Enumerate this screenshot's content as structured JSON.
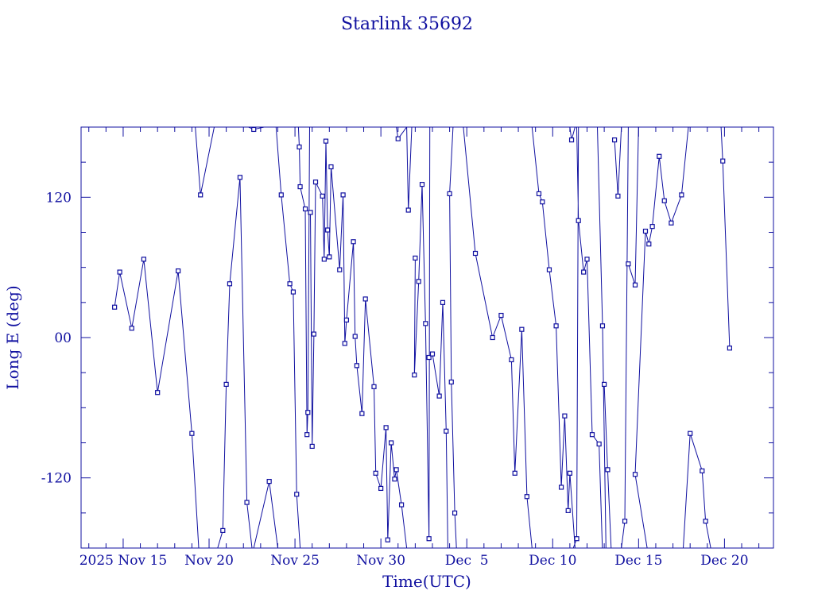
{
  "chart_data": {
    "type": "line",
    "title": "Starlink 35692",
    "xlabel": "Time(UTC)",
    "ylabel": "Long E (deg)",
    "x_unit": "days",
    "xlim": [
      -2.45,
      37.85
    ],
    "ylim": [
      -180,
      180
    ],
    "x_ticks": [
      {
        "v": 0,
        "label": "2025 Nov 15"
      },
      {
        "v": 5,
        "label": "Nov 20"
      },
      {
        "v": 10,
        "label": "Nov 25"
      },
      {
        "v": 15,
        "label": "Nov 30"
      },
      {
        "v": 20,
        "label": "Dec  5"
      },
      {
        "v": 25,
        "label": "Dec 10"
      },
      {
        "v": 30,
        "label": "Dec 15"
      },
      {
        "v": 35,
        "label": "Dec 20"
      }
    ],
    "y_ticks": [
      {
        "v": 120,
        "label": "120"
      },
      {
        "v": 0,
        "label": "00"
      },
      {
        "v": -120,
        "label": "-120"
      }
    ],
    "color": "#1010a0",
    "grid": false,
    "series": [
      {
        "values": [
          [
            -0.5,
            26
          ],
          [
            -0.2,
            56
          ],
          [
            0.5,
            8
          ],
          [
            1.2,
            67
          ],
          [
            2.0,
            -47
          ],
          [
            3.2,
            57
          ],
          [
            4.0,
            -82
          ],
          [
            4.4,
            -180
          ],
          [
            null,
            null
          ],
          [
            4.2,
            180
          ],
          [
            4.5,
            122
          ],
          [
            5.3,
            180
          ],
          [
            null,
            null
          ],
          [
            5.5,
            -180
          ],
          [
            5.8,
            -165
          ],
          [
            6.0,
            -40
          ],
          [
            6.2,
            46
          ],
          [
            6.8,
            137
          ],
          [
            7.2,
            -141
          ],
          [
            7.5,
            -180
          ],
          [
            null,
            null
          ],
          [
            7.3,
            180
          ],
          [
            7.6,
            178
          ],
          [
            8.2,
            180
          ],
          [
            null,
            null
          ],
          [
            7.6,
            -180
          ],
          [
            8.5,
            -123
          ],
          [
            9.0,
            -180
          ],
          [
            null,
            null
          ],
          [
            8.9,
            180
          ],
          [
            9.2,
            122
          ],
          [
            9.7,
            46
          ],
          [
            9.9,
            39
          ],
          [
            10.1,
            -134
          ],
          [
            10.3,
            -180
          ],
          [
            null,
            null
          ],
          [
            10.2,
            180
          ],
          [
            10.25,
            163
          ],
          [
            10.3,
            129
          ],
          [
            10.6,
            110
          ],
          [
            10.7,
            -83
          ],
          [
            10.75,
            -64
          ],
          [
            10.85,
            180
          ],
          [
            null,
            null
          ],
          [
            10.9,
            107
          ],
          [
            11.0,
            -93
          ],
          [
            11.1,
            3
          ],
          [
            11.2,
            133
          ],
          [
            11.6,
            121
          ],
          [
            11.7,
            67
          ],
          [
            11.8,
            168
          ],
          [
            11.9,
            92
          ],
          [
            12.0,
            69
          ],
          [
            12.1,
            146
          ],
          [
            12.6,
            58
          ],
          [
            12.8,
            122
          ],
          [
            12.9,
            -5
          ],
          [
            13.0,
            15
          ],
          [
            13.4,
            82
          ],
          [
            13.5,
            1
          ],
          [
            13.6,
            -24
          ],
          [
            13.9,
            -65
          ],
          [
            14.1,
            33
          ],
          [
            14.6,
            -42
          ],
          [
            14.7,
            -116
          ],
          [
            15.0,
            -129
          ],
          [
            15.3,
            -77
          ],
          [
            15.4,
            -173
          ],
          [
            15.6,
            -90
          ],
          [
            15.8,
            -121
          ],
          [
            15.9,
            -113
          ],
          [
            16.2,
            -143
          ],
          [
            16.5,
            -180
          ],
          [
            null,
            null
          ],
          [
            15.9,
            180
          ],
          [
            16.0,
            170
          ],
          [
            16.5,
            180
          ],
          [
            null,
            null
          ],
          [
            16.5,
            180
          ],
          [
            16.6,
            109
          ],
          [
            16.8,
            180
          ],
          [
            null,
            null
          ],
          [
            17.0,
            68
          ],
          [
            16.95,
            -32
          ],
          [
            17.2,
            48
          ],
          [
            17.4,
            131
          ],
          [
            17.6,
            12
          ],
          [
            17.8,
            -172
          ],
          [
            17.85,
            180
          ],
          [
            null,
            null
          ],
          [
            17.8,
            -17
          ],
          [
            18.0,
            -14
          ],
          [
            18.4,
            -50
          ],
          [
            18.6,
            30
          ],
          [
            18.8,
            -80
          ],
          [
            18.9,
            -180
          ],
          [
            null,
            null
          ],
          [
            19.2,
            180
          ],
          [
            19.0,
            123
          ],
          [
            19.1,
            -38
          ],
          [
            19.3,
            -150
          ],
          [
            19.4,
            -180
          ],
          [
            null,
            null
          ],
          [
            19.8,
            180
          ],
          [
            20.5,
            72
          ],
          [
            21.5,
            0
          ],
          [
            22.0,
            19
          ],
          [
            22.6,
            -19
          ],
          [
            22.8,
            -116
          ],
          [
            23.2,
            7
          ],
          [
            23.5,
            -136
          ],
          [
            23.8,
            -180
          ],
          [
            null,
            null
          ],
          [
            23.8,
            180
          ],
          [
            24.2,
            123
          ],
          [
            24.4,
            116
          ],
          [
            24.8,
            58
          ],
          [
            25.2,
            10
          ],
          [
            25.5,
            -128
          ],
          [
            25.7,
            -67
          ],
          [
            25.9,
            -148
          ],
          [
            26.0,
            -116
          ],
          [
            26.3,
            -180
          ],
          [
            null,
            null
          ],
          [
            26.0,
            180
          ],
          [
            26.1,
            169
          ],
          [
            26.3,
            180
          ],
          [
            null,
            null
          ],
          [
            26.2,
            -180
          ],
          [
            26.4,
            -172
          ],
          [
            26.5,
            180
          ],
          [
            null,
            null
          ],
          [
            26.4,
            180
          ],
          [
            26.5,
            100
          ],
          [
            26.8,
            56
          ],
          [
            27.0,
            67
          ],
          [
            27.3,
            -83
          ],
          [
            27.7,
            -91
          ],
          [
            27.9,
            -185
          ],
          [
            null,
            null
          ],
          [
            27.6,
            180
          ],
          [
            27.9,
            10
          ],
          [
            28.1,
            -180
          ],
          [
            null,
            null
          ],
          [
            28.0,
            -40
          ],
          [
            28.2,
            -113
          ],
          [
            28.4,
            -180
          ],
          [
            null,
            null
          ],
          [
            28.6,
            169
          ],
          [
            28.8,
            121
          ],
          [
            29.0,
            180
          ],
          [
            null,
            null
          ],
          [
            29.0,
            -180
          ],
          [
            29.2,
            -157
          ],
          [
            29.4,
            180
          ],
          [
            null,
            null
          ],
          [
            29.4,
            63
          ],
          [
            29.8,
            45
          ],
          [
            30.0,
            180
          ],
          [
            null,
            null
          ],
          [
            30.5,
            -180
          ],
          [
            29.8,
            -117
          ],
          [
            30.4,
            91
          ],
          [
            30.6,
            80
          ],
          [
            30.8,
            95
          ],
          [
            31.2,
            155
          ],
          [
            31.5,
            117
          ],
          [
            31.9,
            98
          ],
          [
            32.5,
            122
          ],
          [
            32.9,
            180
          ],
          [
            null,
            null
          ],
          [
            32.6,
            -180
          ],
          [
            33.0,
            -82
          ],
          [
            33.7,
            -114
          ],
          [
            33.9,
            -157
          ],
          [
            34.2,
            -180
          ],
          [
            null,
            null
          ],
          [
            34.8,
            180
          ],
          [
            34.9,
            151
          ],
          [
            35.3,
            -9
          ]
        ]
      }
    ],
    "markers": [
      [
        -0.5,
        26
      ],
      [
        -0.2,
        56
      ],
      [
        0.5,
        8
      ],
      [
        1.2,
        67
      ],
      [
        2.0,
        -47
      ],
      [
        3.2,
        57
      ],
      [
        4.0,
        -82
      ],
      [
        4.5,
        122
      ],
      [
        5.8,
        -165
      ],
      [
        6.0,
        -40
      ],
      [
        6.2,
        46
      ],
      [
        6.8,
        137
      ],
      [
        7.2,
        -141
      ],
      [
        7.6,
        178
      ],
      [
        8.5,
        -123
      ],
      [
        9.2,
        122
      ],
      [
        9.7,
        46
      ],
      [
        9.9,
        39
      ],
      [
        10.1,
        -134
      ],
      [
        10.25,
        163
      ],
      [
        10.3,
        129
      ],
      [
        10.6,
        110
      ],
      [
        10.7,
        -83
      ],
      [
        10.75,
        -64
      ],
      [
        10.9,
        107
      ],
      [
        11.0,
        -93
      ],
      [
        11.1,
        3
      ],
      [
        11.2,
        133
      ],
      [
        11.6,
        121
      ],
      [
        11.7,
        67
      ],
      [
        11.8,
        168
      ],
      [
        11.9,
        92
      ],
      [
        12.0,
        69
      ],
      [
        12.1,
        146
      ],
      [
        12.6,
        58
      ],
      [
        12.8,
        122
      ],
      [
        12.9,
        -5
      ],
      [
        13.0,
        15
      ],
      [
        13.4,
        82
      ],
      [
        13.5,
        1
      ],
      [
        13.6,
        -24
      ],
      [
        13.9,
        -65
      ],
      [
        14.1,
        33
      ],
      [
        14.6,
        -42
      ],
      [
        14.7,
        -116
      ],
      [
        15.0,
        -129
      ],
      [
        15.3,
        -77
      ],
      [
        15.4,
        -173
      ],
      [
        15.6,
        -90
      ],
      [
        15.8,
        -121
      ],
      [
        15.9,
        -113
      ],
      [
        16.2,
        -143
      ],
      [
        16.0,
        170
      ],
      [
        16.6,
        109
      ],
      [
        17.0,
        68
      ],
      [
        16.95,
        -32
      ],
      [
        17.2,
        48
      ],
      [
        17.4,
        131
      ],
      [
        17.6,
        12
      ],
      [
        17.8,
        -172
      ],
      [
        17.8,
        -17
      ],
      [
        18.0,
        -14
      ],
      [
        18.4,
        -50
      ],
      [
        18.6,
        30
      ],
      [
        18.8,
        -80
      ],
      [
        19.0,
        123
      ],
      [
        19.1,
        -38
      ],
      [
        19.3,
        -150
      ],
      [
        20.5,
        72
      ],
      [
        21.5,
        0
      ],
      [
        22.0,
        19
      ],
      [
        22.6,
        -19
      ],
      [
        22.8,
        -116
      ],
      [
        23.2,
        7
      ],
      [
        23.5,
        -136
      ],
      [
        24.2,
        123
      ],
      [
        24.4,
        116
      ],
      [
        24.8,
        58
      ],
      [
        25.2,
        10
      ],
      [
        25.5,
        -128
      ],
      [
        25.7,
        -67
      ],
      [
        25.9,
        -148
      ],
      [
        26.0,
        -116
      ],
      [
        26.1,
        169
      ],
      [
        26.4,
        -172
      ],
      [
        26.5,
        100
      ],
      [
        26.8,
        56
      ],
      [
        27.0,
        67
      ],
      [
        27.3,
        -83
      ],
      [
        27.7,
        -91
      ],
      [
        27.9,
        10
      ],
      [
        28.0,
        -40
      ],
      [
        28.2,
        -113
      ],
      [
        28.6,
        169
      ],
      [
        28.8,
        121
      ],
      [
        29.2,
        -157
      ],
      [
        29.4,
        63
      ],
      [
        29.8,
        45
      ],
      [
        29.8,
        -117
      ],
      [
        30.4,
        91
      ],
      [
        30.6,
        80
      ],
      [
        30.8,
        95
      ],
      [
        31.2,
        155
      ],
      [
        31.5,
        117
      ],
      [
        31.9,
        98
      ],
      [
        32.5,
        122
      ],
      [
        33.0,
        -82
      ],
      [
        33.7,
        -114
      ],
      [
        33.9,
        -157
      ],
      [
        34.9,
        151
      ],
      [
        35.3,
        -9
      ]
    ]
  }
}
